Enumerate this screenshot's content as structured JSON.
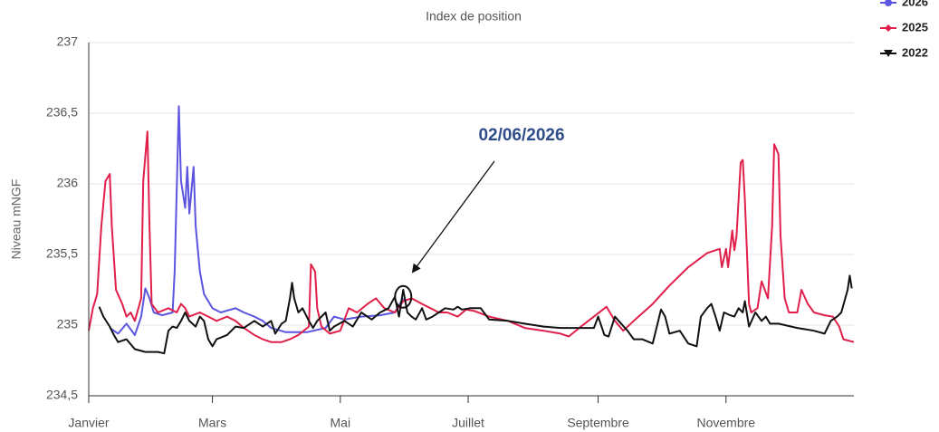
{
  "chart_data": {
    "type": "line",
    "title": "Index de position",
    "ylabel": "Niveau  mNGF",
    "xlim": [
      0,
      365
    ],
    "xticks": [
      {
        "value": 0,
        "label": "Janvier"
      },
      {
        "value": 59,
        "label": "Mars"
      },
      {
        "value": 120,
        "label": "Mai"
      },
      {
        "value": 181,
        "label": "Juillet"
      },
      {
        "value": 243,
        "label": "Septembre"
      },
      {
        "value": 304,
        "label": "Novembre"
      }
    ],
    "ylim": [
      234.5,
      237
    ],
    "yticks": [
      {
        "value": 234.5,
        "label": "234,5"
      },
      235,
      {
        "value": 235.5,
        "label": "235,5"
      },
      236,
      {
        "value": 236.5,
        "label": "236,5"
      },
      237
    ],
    "grid": true,
    "legend": "top-right",
    "annotation": {
      "text": "02/06/2026",
      "x": 150,
      "y": 235.2
    },
    "series": [
      {
        "name": "2026",
        "color": "#5b55e0",
        "marker": "circle",
        "x": [
          10,
          14,
          18,
          22,
          25,
          27,
          29,
          31,
          35,
          40,
          41,
          43,
          44,
          46,
          47,
          48,
          50,
          51,
          53,
          55,
          59,
          63,
          70,
          74,
          79,
          83,
          87,
          94,
          104,
          113,
          117,
          122,
          130,
          139,
          146,
          150
        ],
        "values": [
          234.98,
          234.94,
          235.01,
          234.93,
          235.06,
          235.26,
          235.19,
          235.09,
          235.07,
          235.09,
          235.38,
          236.55,
          236.02,
          235.83,
          236.12,
          235.79,
          236.12,
          235.7,
          235.38,
          235.22,
          235.12,
          235.09,
          235.12,
          235.09,
          235.06,
          235.03,
          234.98,
          234.95,
          234.95,
          234.98,
          235.06,
          235.04,
          235.06,
          235.07,
          235.09,
          235.19
        ]
      },
      {
        "name": "2025",
        "color": "#e0204a",
        "marker": "diamond",
        "x": [
          0,
          2,
          4,
          6,
          8,
          10,
          11,
          13,
          16,
          18,
          20,
          22,
          25,
          26,
          28,
          29,
          30,
          33,
          38,
          42,
          44,
          46,
          48,
          53,
          57,
          61,
          66,
          70,
          74,
          79,
          83,
          87,
          92,
          96,
          100,
          105,
          106,
          108,
          109,
          111,
          115,
          120,
          124,
          128,
          133,
          137,
          141,
          146,
          150,
          154,
          159,
          163,
          167,
          171,
          176,
          180,
          184,
          191,
          200,
          208,
          217,
          225,
          229,
          234,
          241,
          247,
          251,
          255,
          260,
          269,
          277,
          286,
          295,
          301,
          302,
          304,
          305,
          307,
          308,
          309,
          311,
          312,
          313,
          315,
          316,
          319,
          321,
          324,
          326,
          327,
          329,
          330,
          332,
          334,
          338,
          340,
          343,
          346,
          351,
          355,
          358,
          360,
          365
        ],
        "values": [
          234.96,
          235.12,
          235.22,
          235.7,
          236.02,
          236.07,
          235.7,
          235.25,
          235.15,
          235.06,
          235.09,
          235.03,
          235.19,
          236.02,
          236.37,
          235.7,
          235.15,
          235.09,
          235.12,
          235.09,
          235.15,
          235.12,
          235.06,
          235.09,
          235.06,
          235.03,
          235.06,
          235.03,
          234.98,
          234.93,
          234.9,
          234.88,
          234.88,
          234.9,
          234.93,
          234.99,
          235.43,
          235.38,
          235.12,
          234.99,
          234.94,
          234.96,
          235.12,
          235.09,
          235.15,
          235.19,
          235.12,
          235.09,
          235.17,
          235.19,
          235.15,
          235.12,
          235.09,
          235.09,
          235.06,
          235.11,
          235.1,
          235.06,
          235.03,
          234.98,
          234.96,
          234.94,
          234.92,
          234.98,
          235.06,
          235.13,
          235.03,
          234.96,
          235.03,
          235.15,
          235.28,
          235.41,
          235.51,
          235.54,
          235.41,
          235.54,
          235.41,
          235.67,
          235.53,
          235.63,
          236.15,
          236.17,
          235.89,
          235.15,
          235.09,
          235.12,
          235.31,
          235.19,
          235.7,
          236.28,
          236.21,
          235.63,
          235.19,
          235.09,
          235.09,
          235.25,
          235.15,
          235.09,
          235.07,
          235.06,
          234.99,
          234.9,
          234.88
        ]
      },
      {
        "name": "2022",
        "color": "#111111",
        "marker": "triangle",
        "x": [
          5,
          7,
          10,
          12,
          14,
          18,
          22,
          27,
          33,
          36,
          38,
          40,
          42,
          44,
          46,
          48,
          51,
          53,
          55,
          57,
          59,
          61,
          66,
          70,
          74,
          79,
          83,
          87,
          89,
          92,
          94,
          96,
          97,
          98,
          100,
          102,
          105,
          107,
          109,
          113,
          115,
          117,
          122,
          126,
          130,
          135,
          139,
          143,
          146,
          148,
          150,
          152,
          154,
          156,
          159,
          161,
          164,
          167,
          170,
          174,
          176,
          178,
          182,
          187,
          191,
          200,
          208,
          217,
          225,
          234,
          241,
          243,
          246,
          248,
          251,
          254,
          257,
          260,
          264,
          269,
          271,
          273,
          275,
          277,
          282,
          286,
          290,
          292,
          295,
          297,
          299,
          301,
          303,
          306,
          308,
          310,
          312,
          313,
          315,
          318,
          321,
          323,
          325,
          329,
          338,
          346,
          351,
          354,
          357,
          359,
          362,
          363,
          364
        ],
        "values": [
          235.13,
          235.06,
          234.99,
          234.93,
          234.88,
          234.9,
          234.83,
          234.81,
          234.81,
          234.8,
          234.96,
          234.99,
          234.98,
          235.03,
          235.09,
          235.03,
          234.99,
          235.06,
          235.03,
          234.9,
          234.85,
          234.9,
          234.93,
          234.99,
          234.98,
          235.03,
          234.99,
          235.03,
          234.94,
          235.01,
          235.03,
          235.19,
          235.3,
          235.19,
          235.09,
          235.12,
          235.03,
          234.98,
          235.03,
          235.09,
          234.96,
          234.99,
          235.03,
          234.99,
          235.09,
          235.04,
          235.09,
          235.12,
          235.2,
          235.06,
          235.25,
          235.09,
          235.06,
          235.04,
          235.12,
          235.04,
          235.06,
          235.09,
          235.12,
          235.11,
          235.13,
          235.11,
          235.12,
          235.12,
          235.04,
          235.03,
          235.01,
          234.99,
          234.98,
          234.98,
          234.98,
          235.06,
          234.93,
          234.92,
          235.06,
          235.01,
          234.96,
          234.9,
          234.9,
          234.87,
          234.99,
          235.11,
          235.06,
          234.94,
          234.96,
          234.87,
          234.85,
          235.06,
          235.12,
          235.15,
          235.06,
          234.96,
          235.09,
          235.07,
          235.06,
          235.12,
          235.09,
          235.17,
          234.99,
          235.09,
          235.03,
          235.06,
          235.01,
          235.01,
          234.98,
          234.96,
          234.94,
          235.03,
          235.06,
          235.09,
          235.25,
          235.35,
          235.26
        ]
      }
    ]
  }
}
